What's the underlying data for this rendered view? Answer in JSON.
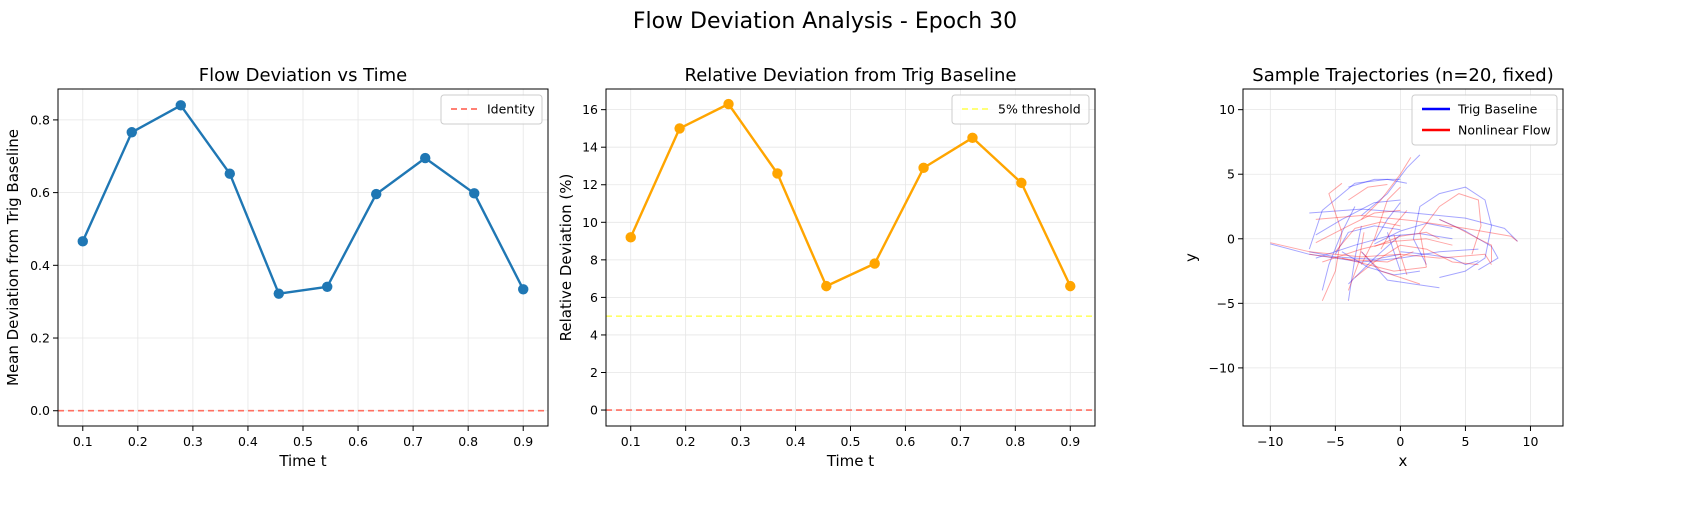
{
  "figure": {
    "title": "Flow Deviation Analysis - Epoch 30"
  },
  "colors": {
    "series1": "#1f77b4",
    "series2": "#ffa500",
    "identity": "#ff6f61",
    "threshold": "#ffff66",
    "trig": "#0000ff",
    "nonlinear": "#ff0000",
    "grid": "#e6e6e6"
  },
  "chart_data": [
    {
      "type": "line",
      "title": "Flow Deviation vs Time",
      "xlabel": "Time t",
      "ylabel": "Mean Deviation from Trig Baseline",
      "xlim": [
        0.055,
        0.945
      ],
      "ylim": [
        -0.042,
        0.885
      ],
      "xticks": [
        0.1,
        0.2,
        0.3,
        0.4,
        0.5,
        0.6,
        0.7,
        0.8,
        0.9
      ],
      "xtick_labels": [
        "0.1",
        "0.2",
        "0.3",
        "0.4",
        "0.5",
        "0.6",
        "0.7",
        "0.8",
        "0.9"
      ],
      "yticks": [
        0.0,
        0.2,
        0.4,
        0.6,
        0.8
      ],
      "ytick_labels": [
        "0.0",
        "0.2",
        "0.4",
        "0.6",
        "0.8"
      ],
      "grid": true,
      "legend": {
        "position": "upper-right",
        "entries": [
          {
            "label": "Identity",
            "style": "dashed",
            "color": "#ff6f61"
          }
        ]
      },
      "hlines": [
        {
          "y": 0.0,
          "color": "#ff6f61",
          "style": "dashed"
        }
      ],
      "series": [
        {
          "color": "#1f77b4",
          "x": [
            0.1,
            0.189,
            0.278,
            0.367,
            0.456,
            0.544,
            0.633,
            0.722,
            0.811,
            0.9
          ],
          "y": [
            0.466,
            0.766,
            0.84,
            0.652,
            0.322,
            0.341,
            0.596,
            0.695,
            0.598,
            0.334
          ]
        }
      ]
    },
    {
      "type": "line",
      "title": "Relative Deviation from Trig Baseline",
      "xlabel": "Time t",
      "ylabel": "Relative Deviation (%)",
      "xlim": [
        0.055,
        0.945
      ],
      "ylim": [
        -0.85,
        17.1
      ],
      "xticks": [
        0.1,
        0.2,
        0.3,
        0.4,
        0.5,
        0.6,
        0.7,
        0.8,
        0.9
      ],
      "xtick_labels": [
        "0.1",
        "0.2",
        "0.3",
        "0.4",
        "0.5",
        "0.6",
        "0.7",
        "0.8",
        "0.9"
      ],
      "yticks": [
        0,
        2,
        4,
        6,
        8,
        10,
        12,
        14,
        16
      ],
      "ytick_labels": [
        "0",
        "2",
        "4",
        "6",
        "8",
        "10",
        "12",
        "14",
        "16"
      ],
      "grid": true,
      "legend": {
        "position": "upper-right",
        "entries": [
          {
            "label": "5% threshold",
            "style": "dashed",
            "color": "#ffff66"
          }
        ]
      },
      "hlines": [
        {
          "y": 5.0,
          "color": "#ffff66",
          "style": "dashed"
        },
        {
          "y": 0.0,
          "color": "#ff6f61",
          "style": "dashed"
        }
      ],
      "series": [
        {
          "color": "#ffa500",
          "x": [
            0.1,
            0.189,
            0.278,
            0.367,
            0.456,
            0.544,
            0.633,
            0.722,
            0.811,
            0.9
          ],
          "y": [
            9.2,
            15.0,
            16.3,
            12.6,
            6.6,
            7.8,
            12.9,
            14.5,
            12.1,
            6.6
          ]
        }
      ]
    },
    {
      "type": "line",
      "title": "Sample Trajectories (n=20, fixed)",
      "xlabel": "x",
      "ylabel": "y",
      "xlim": [
        -12.1,
        12.5
      ],
      "ylim": [
        -14.5,
        11.6
      ],
      "xticks": [
        -10,
        -5,
        0,
        5,
        10
      ],
      "xtick_labels": [
        "−10",
        "−5",
        "0",
        "5",
        "10"
      ],
      "yticks": [
        -10,
        -5,
        0,
        5,
        10
      ],
      "ytick_labels": [
        "−10",
        "−5",
        "0",
        "5",
        "10"
      ],
      "grid": true,
      "legend": {
        "position": "upper-right",
        "entries": [
          {
            "label": "Trig Baseline",
            "style": "solid",
            "color": "#0000ff"
          },
          {
            "label": "Nonlinear Flow",
            "style": "solid",
            "color": "#ff0000"
          }
        ]
      },
      "series": [
        {
          "name": "Trig Baseline",
          "color": "#0000ff",
          "paths": [
            [
              [
                -10,
                -0.4
              ],
              [
                -7,
                -1.2
              ],
              [
                -3,
                -1.8
              ],
              [
                0,
                -1.5
              ],
              [
                3,
                -1
              ],
              [
                6,
                -0.8
              ]
            ],
            [
              [
                -7,
                2
              ],
              [
                -3,
                2.3
              ],
              [
                1,
                2
              ],
              [
                5,
                1.6
              ],
              [
                8,
                0.8
              ],
              [
                9,
                -0.2
              ]
            ],
            [
              [
                -6.5,
                -1.5
              ],
              [
                -3.5,
                -0.5
              ],
              [
                -1,
                0.2
              ],
              [
                1.5,
                0.4
              ],
              [
                4,
                0
              ]
            ],
            [
              [
                -7,
                -0.8
              ],
              [
                -6,
                2.2
              ],
              [
                -3.5,
                4.3
              ],
              [
                -1,
                4.6
              ],
              [
                0.5,
                4.3
              ]
            ],
            [
              [
                2,
                -2
              ],
              [
                1,
                0
              ],
              [
                1.5,
                2.5
              ],
              [
                3,
                3.5
              ],
              [
                5,
                4
              ],
              [
                6.5,
                3
              ],
              [
                7,
                1
              ],
              [
                6.5,
                -1.5
              ],
              [
                5,
                -2.5
              ],
              [
                3,
                -3
              ]
            ],
            [
              [
                -6,
                -4
              ],
              [
                -5.5,
                -2
              ],
              [
                -4.5,
                0.5
              ],
              [
                -3.5,
                2.5
              ]
            ],
            [
              [
                -3,
                1.8
              ],
              [
                -1,
                3.5
              ],
              [
                0.5,
                5.5
              ],
              [
                1.5,
                6.5
              ]
            ],
            [
              [
                -2,
                -0.4
              ],
              [
                0,
                0.6
              ],
              [
                2,
                1.2
              ],
              [
                4,
                0.8
              ]
            ],
            [
              [
                -3,
                -1
              ],
              [
                -1,
                -3.2
              ],
              [
                1,
                -3.5
              ],
              [
                3,
                -3.8
              ]
            ],
            [
              [
                -5,
                -1.2
              ],
              [
                -4,
                0.5
              ],
              [
                -2,
                1
              ],
              [
                0,
                0.7
              ]
            ],
            [
              [
                -4,
                -3.5
              ],
              [
                -2,
                -1.5
              ],
              [
                0,
                0.3
              ]
            ],
            [
              [
                3,
                1.5
              ],
              [
                5,
                0.6
              ],
              [
                7,
                -0.6
              ],
              [
                7.5,
                -1.5
              ],
              [
                6,
                -2.4
              ]
            ],
            [
              [
                -6.5,
                0.3
              ],
              [
                -4.5,
                1.5
              ],
              [
                -2,
                2.8
              ],
              [
                0,
                3
              ]
            ],
            [
              [
                -2,
                -0.2
              ],
              [
                -1,
                1.5
              ],
              [
                0,
                2.8
              ]
            ],
            [
              [
                -4.5,
                -1
              ],
              [
                -2.5,
                -2.2
              ],
              [
                -0.5,
                -2.8
              ],
              [
                1.5,
                -2.5
              ]
            ],
            [
              [
                -4,
                -4.8
              ],
              [
                -3.5,
                -1.5
              ],
              [
                -3,
                1
              ]
            ],
            [
              [
                -4,
                4
              ],
              [
                -2,
                4.6
              ],
              [
                0,
                4.6
              ]
            ],
            [
              [
                0,
                -1
              ],
              [
                2,
                -1.2
              ],
              [
                4,
                -1.5
              ],
              [
                5,
                -2
              ],
              [
                6,
                -1.7
              ]
            ],
            [
              [
                -7,
                -1
              ],
              [
                -5,
                -1.4
              ],
              [
                -2,
                -1.6
              ],
              [
                0,
                -1.2
              ]
            ],
            [
              [
                -1,
                0.5
              ],
              [
                -0.5,
                -1
              ],
              [
                0,
                -2.5
              ]
            ]
          ]
        },
        {
          "name": "Nonlinear Flow",
          "color": "#ff0000",
          "paths": [
            [
              [
                -10,
                -0.3
              ],
              [
                -7,
                -1
              ],
              [
                -3,
                -1.4
              ],
              [
                0,
                -1.2
              ],
              [
                3,
                -1.5
              ],
              [
                6.5,
                -1.2
              ],
              [
                7,
                -2
              ]
            ],
            [
              [
                -6.5,
                1.5
              ],
              [
                -3,
                1.8
              ],
              [
                1,
                1.4
              ],
              [
                5,
                0.8
              ],
              [
                8.5,
                0.2
              ],
              [
                9,
                -0.2
              ]
            ],
            [
              [
                -6,
                -1.8
              ],
              [
                -3,
                -0.8
              ],
              [
                -0.5,
                -0.2
              ],
              [
                2,
                0
              ],
              [
                4,
                -0.5
              ]
            ],
            [
              [
                -6,
                -4.8
              ],
              [
                -5,
                -2.5
              ],
              [
                -4.5,
                0.5
              ],
              [
                -5.5,
                3.5
              ],
              [
                -4.5,
                4.3
              ]
            ],
            [
              [
                2,
                -2.2
              ],
              [
                1.5,
                0.5
              ],
              [
                3,
                2.5
              ],
              [
                4.5,
                3.5
              ],
              [
                6,
                3
              ],
              [
                6.2,
                1
              ],
              [
                5.5,
                -1.2
              ]
            ],
            [
              [
                -3,
                -2
              ],
              [
                -2,
                0
              ],
              [
                -1,
                3
              ],
              [
                0,
                4
              ]
            ],
            [
              [
                -3,
                1.5
              ],
              [
                -1.5,
                3
              ],
              [
                0,
                5
              ],
              [
                0.8,
                6.3
              ]
            ],
            [
              [
                -2,
                -0.6
              ],
              [
                0,
                0.2
              ],
              [
                2,
                0.5
              ],
              [
                3,
                0
              ]
            ],
            [
              [
                -3,
                -1
              ],
              [
                -1.5,
                -2.5
              ],
              [
                0,
                -3
              ],
              [
                1.5,
                -3.5
              ]
            ],
            [
              [
                -5,
                -1
              ],
              [
                -3.5,
                0.8
              ],
              [
                -1.5,
                1.3
              ],
              [
                0,
                1
              ]
            ],
            [
              [
                -3.5,
                -3
              ],
              [
                -2,
                -1.8
              ],
              [
                0,
                -0.5
              ]
            ],
            [
              [
                3,
                1.5
              ],
              [
                4.5,
                0.8
              ],
              [
                6,
                0
              ],
              [
                7,
                -0.5
              ],
              [
                7,
                -1.8
              ]
            ],
            [
              [
                -6.5,
                -0.3
              ],
              [
                -4,
                1
              ],
              [
                -2,
                2
              ],
              [
                0,
                2.2
              ]
            ],
            [
              [
                -1.5,
                -0.8
              ],
              [
                -0.5,
                1
              ],
              [
                0.5,
                2.2
              ]
            ],
            [
              [
                -4.5,
                -1.5
              ],
              [
                -2.5,
                -2
              ],
              [
                -0.5,
                -2.5
              ],
              [
                2,
                -2.2
              ]
            ],
            [
              [
                -4,
                -4
              ],
              [
                -3.2,
                -1.8
              ],
              [
                -2.8,
                0.5
              ]
            ],
            [
              [
                -4,
                3
              ],
              [
                -2.5,
                4
              ],
              [
                -1,
                4.2
              ]
            ],
            [
              [
                0,
                -0.5
              ],
              [
                2,
                -0.8
              ],
              [
                4,
                -1.8
              ],
              [
                6,
                -2
              ]
            ],
            [
              [
                -7,
                -1.2
              ],
              [
                -4,
                -1.6
              ],
              [
                -1,
                -1.8
              ],
              [
                1,
                -1
              ]
            ],
            [
              [
                -0.5,
                0.3
              ],
              [
                0,
                -1.2
              ],
              [
                0.5,
                -2.8
              ]
            ]
          ]
        }
      ]
    }
  ]
}
